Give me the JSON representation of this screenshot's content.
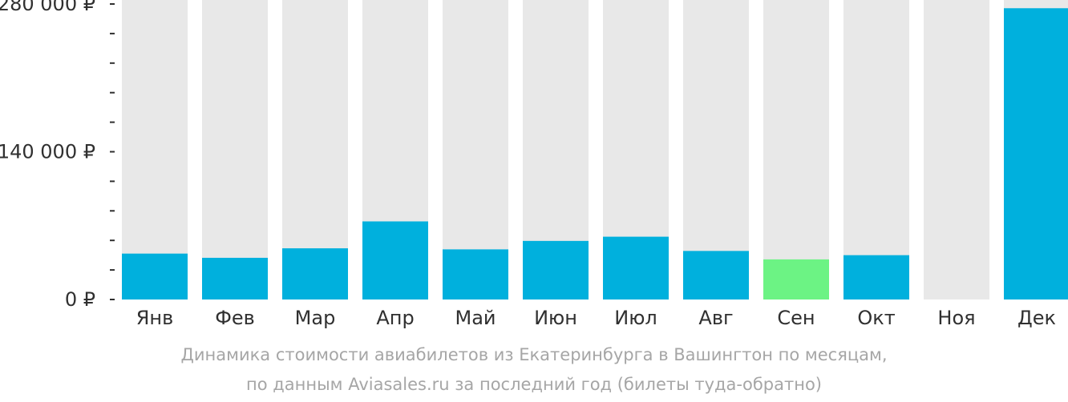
{
  "chart_data": {
    "type": "bar",
    "categories": [
      "Янв",
      "Фев",
      "Мар",
      "Апр",
      "Май",
      "Июн",
      "Июл",
      "Авг",
      "Сен",
      "Окт",
      "Ноя",
      "Дек"
    ],
    "values": [
      43500,
      39500,
      48500,
      74000,
      47500,
      55500,
      59500,
      46000,
      38000,
      42000,
      0,
      276000
    ],
    "value_unit": "₽",
    "ylim": [
      0,
      280000
    ],
    "y_ticks": [
      {
        "value": 0,
        "label": "0 ₽"
      },
      {
        "value": 140000,
        "label": "140 000 ₽"
      },
      {
        "value": 280000,
        "label": "280 000 ₽"
      }
    ],
    "y_minor_tick_step": 28000,
    "grid": false,
    "highlight_index": 8,
    "colors": {
      "bar": "#00b0dd",
      "highlight": "#6cf384",
      "background_column": "#e8e8e8",
      "axis_text": "#303030",
      "axis_line": "#303030"
    }
  },
  "caption": {
    "line1": "Динамика стоимости авиабилетов из Екатеринбурга в Вашингтон по месяцам,",
    "line2": "по данным Aviasales.ru за последний год (билеты туда-обратно)"
  }
}
